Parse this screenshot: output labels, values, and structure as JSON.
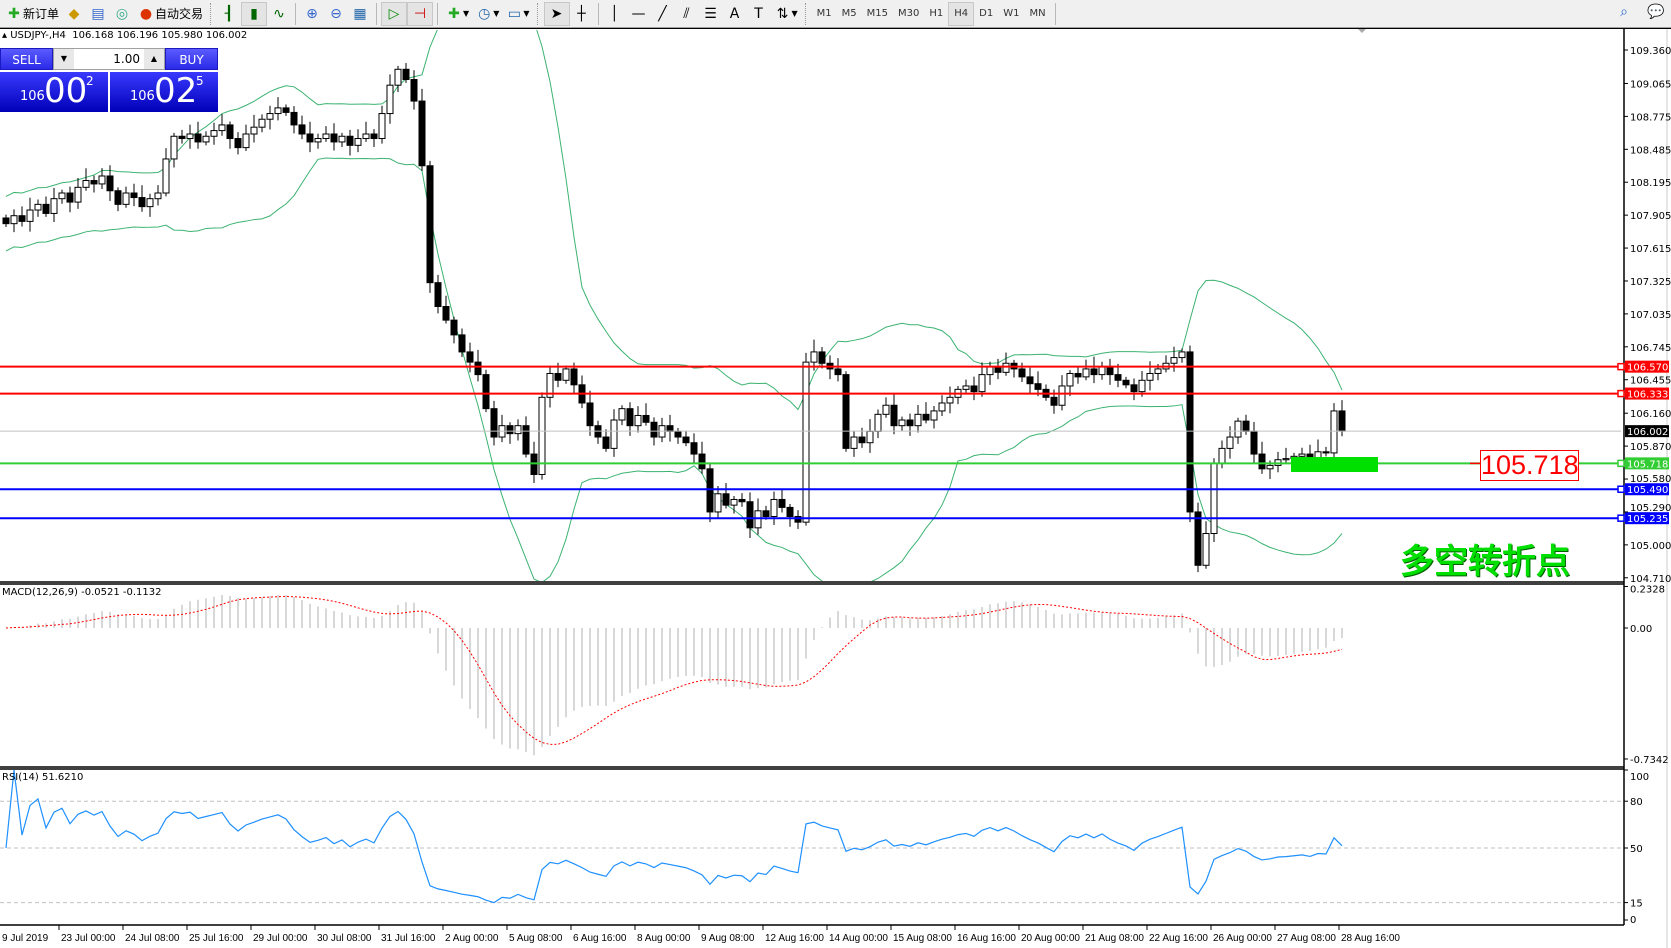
{
  "toolbar": {
    "new_order": "新订单",
    "auto_trading": "自动交易",
    "timeframes": [
      "M1",
      "M5",
      "M15",
      "M30",
      "H1",
      "H4",
      "D1",
      "W1",
      "MN"
    ],
    "active_timeframe": "H4"
  },
  "header": {
    "symbol": "USDJPY-,H4",
    "ohlc": "106.168 106.196 105.980 106.002"
  },
  "trade_panel": {
    "sell_label": "SELL",
    "buy_label": "BUY",
    "lot": "1.00",
    "bid": {
      "big": "106",
      "main": "00",
      "sup": "2"
    },
    "ask": {
      "big": "106",
      "main": "02",
      "sup": "5"
    }
  },
  "price_axis": [
    "109.360",
    "109.065",
    "108.775",
    "108.485",
    "108.195",
    "107.905",
    "107.615",
    "107.325",
    "107.035",
    "106.745",
    "106.455",
    "106.160",
    "105.870",
    "105.580",
    "105.290",
    "105.000",
    "104.710"
  ],
  "hlines": [
    {
      "price": 106.57,
      "label": "106.570",
      "color": "#ff0000"
    },
    {
      "price": 106.333,
      "label": "106.333",
      "color": "#ff0000"
    },
    {
      "price": 106.002,
      "label": "106.002",
      "color": "#c0c0c0",
      "tag": "#000000"
    },
    {
      "price": 105.718,
      "label": "105.718",
      "color": "#32cd32"
    },
    {
      "price": 105.49,
      "label": "105.490",
      "color": "#0000ff"
    },
    {
      "price": 105.235,
      "label": "105.235",
      "color": "#0000ff"
    }
  ],
  "annotations": {
    "pivot_price": "105.718",
    "pivot_text": "多空转折点",
    "pivot_color": "#00e000"
  },
  "macd": {
    "label": "MACD(12,26,9) -0.0521 -0.1132",
    "axis": [
      "0.2328",
      "0.00",
      "-0.7342"
    ]
  },
  "rsi": {
    "label": "RSI(14) 51.6210",
    "axis": [
      "100",
      "80",
      "50",
      "15",
      "0"
    ],
    "levels": [
      80,
      50,
      15
    ]
  },
  "time_axis": [
    "9 Jul 2019",
    "23 Jul 00:00",
    "24 Jul 08:00",
    "25 Jul 16:00",
    "29 Jul 00:00",
    "30 Jul 08:00",
    "31 Jul 16:00",
    "2 Aug 00:00",
    "5 Aug 08:00",
    "6 Aug 16:00",
    "8 Aug 00:00",
    "9 Aug 08:00",
    "12 Aug 16:00",
    "14 Aug 00:00",
    "15 Aug 08:00",
    "16 Aug 16:00",
    "20 Aug 00:00",
    "21 Aug 08:00",
    "22 Aug 16:00",
    "26 Aug 00:00",
    "27 Aug 08:00",
    "28 Aug 16:00"
  ],
  "chart_data": {
    "type": "candlestick",
    "symbol": "USDJPY",
    "timeframe": "H4",
    "ylim": [
      104.71,
      109.36
    ],
    "indicators": [
      "Bollinger Bands(20,2)",
      "MACD(12,26,9)",
      "RSI(14)"
    ],
    "closes": [
      107.83,
      107.9,
      107.85,
      107.95,
      108.0,
      107.92,
      108.05,
      108.1,
      108.02,
      108.15,
      108.21,
      108.18,
      108.25,
      108.12,
      108.0,
      108.1,
      108.06,
      107.98,
      108.05,
      108.1,
      108.4,
      108.6,
      108.58,
      108.62,
      108.55,
      108.6,
      108.65,
      108.7,
      108.58,
      108.5,
      108.62,
      108.68,
      108.75,
      108.8,
      108.85,
      108.81,
      108.7,
      108.62,
      108.55,
      108.58,
      108.62,
      108.55,
      108.6,
      108.52,
      108.58,
      108.62,
      108.58,
      108.8,
      109.05,
      109.19,
      109.1,
      108.91,
      108.34,
      107.31,
      107.1,
      106.98,
      106.85,
      106.7,
      106.61,
      106.5,
      106.2,
      105.95,
      106.05,
      105.98,
      106.05,
      105.8,
      105.62,
      106.3,
      106.51,
      106.45,
      106.55,
      106.41,
      106.25,
      106.05,
      105.95,
      105.85,
      106.1,
      106.2,
      106.05,
      106.14,
      106.08,
      105.95,
      106.05,
      106.0,
      105.95,
      105.9,
      105.8,
      105.67,
      105.29,
      105.45,
      105.35,
      105.4,
      105.38,
      105.15,
      105.3,
      105.25,
      105.4,
      105.33,
      105.25,
      105.2,
      106.61,
      106.7,
      106.6,
      106.55,
      106.5,
      105.85,
      105.95,
      105.9,
      106.0,
      106.15,
      106.23,
      106.05,
      106.1,
      106.05,
      106.15,
      106.1,
      106.18,
      106.25,
      106.3,
      106.37,
      106.4,
      106.35,
      106.5,
      106.57,
      106.52,
      106.6,
      106.55,
      106.48,
      106.42,
      106.37,
      106.3,
      106.23,
      106.4,
      106.51,
      106.48,
      106.55,
      106.5,
      106.57,
      106.5,
      106.45,
      106.41,
      106.35,
      106.45,
      106.51,
      106.55,
      106.6,
      106.65,
      106.7,
      105.29,
      104.82,
      105.1,
      105.72,
      105.85,
      105.95,
      106.09,
      106.0,
      105.8,
      105.67,
      105.7,
      105.75,
      105.76,
      105.78,
      105.8,
      105.76,
      105.82,
      105.81,
      106.18,
      106.002
    ]
  }
}
